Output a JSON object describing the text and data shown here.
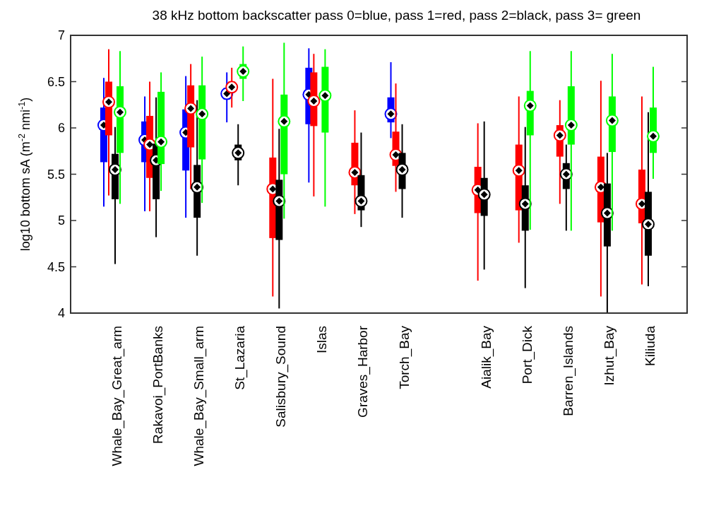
{
  "chart_data": {
    "type": "box",
    "title": "38 kHz bottom backscatter pass 0=blue, pass 1=red, pass 2=black, pass 3= green",
    "ylabel": "log10 bottom sA (m$^{-2}$ nmi$^{-1}$)",
    "categories": [
      "Whale_Bay_Great_arm",
      "Rakavoi_PortBanks",
      "Whale_Bay_Small_arm",
      "St_Lazaria",
      "Salisbury_Sound",
      "Islas",
      "Graves_Harbor",
      "Torch_Bay",
      null,
      "Aialik_Bay",
      "Port_Dick",
      "Barren_Islands",
      "Izhut_Bay",
      "Kiliuda"
    ],
    "ylim": [
      4,
      7
    ],
    "yticks": [
      4,
      4.5,
      5,
      5.5,
      6,
      6.5,
      7
    ],
    "grid": false,
    "series": [
      {
        "color": "#0000ff",
        "boxes": [
          {
            "low": 5.15,
            "q1": 5.63,
            "median": 6.03,
            "q3": 6.22,
            "high": 6.54
          },
          {
            "low": 5.1,
            "q1": 5.63,
            "median": 5.87,
            "q3": 6.07,
            "high": 6.34
          },
          {
            "low": 5.03,
            "q1": 5.54,
            "median": 5.95,
            "q3": 6.2,
            "high": 6.56
          },
          {
            "low": 6.06,
            "q1": 6.31,
            "median": 6.37,
            "q3": 6.43,
            "high": 6.6
          },
          null,
          {
            "low": 5.41,
            "q1": 6.04,
            "median": 6.36,
            "q3": 6.65,
            "high": 6.86
          },
          null,
          {
            "low": 5.89,
            "q1": 6.06,
            "median": 6.15,
            "q3": 6.33,
            "high": 6.71
          },
          null,
          null,
          null,
          null,
          null,
          null
        ]
      },
      {
        "color": "#ff0000",
        "boxes": [
          {
            "low": 5.27,
            "q1": 5.92,
            "median": 6.28,
            "q3": 6.5,
            "high": 6.85
          },
          {
            "low": 5.1,
            "q1": 5.46,
            "median": 5.82,
            "q3": 6.13,
            "high": 6.5
          },
          {
            "low": 5.34,
            "q1": 5.79,
            "median": 6.21,
            "q3": 6.46,
            "high": 6.69
          },
          {
            "low": 6.22,
            "q1": 6.39,
            "median": 6.44,
            "q3": 6.5,
            "high": 6.65
          },
          {
            "low": 4.18,
            "q1": 4.81,
            "median": 5.34,
            "q3": 5.68,
            "high": 6.53
          },
          {
            "low": 5.26,
            "q1": 6.02,
            "median": 6.29,
            "q3": 6.6,
            "high": 6.8
          },
          {
            "low": 5.07,
            "q1": 5.38,
            "median": 5.52,
            "q3": 5.84,
            "high": 6.19
          },
          {
            "low": 5.31,
            "q1": 5.59,
            "median": 5.71,
            "q3": 5.96,
            "high": 6.48
          },
          null,
          {
            "low": 4.35,
            "q1": 5.08,
            "median": 5.33,
            "q3": 5.58,
            "high": 6.05
          },
          {
            "low": 4.76,
            "q1": 5.11,
            "median": 5.54,
            "q3": 5.82,
            "high": 6.34
          },
          {
            "low": 5.18,
            "q1": 5.69,
            "median": 5.92,
            "q3": 6.03,
            "high": 6.3
          },
          {
            "low": 4.18,
            "q1": 4.98,
            "median": 5.36,
            "q3": 5.69,
            "high": 6.51
          },
          {
            "low": 4.31,
            "q1": 4.97,
            "median": 5.18,
            "q3": 5.55,
            "high": 6.34
          }
        ]
      },
      {
        "color": "#000000",
        "boxes": [
          {
            "low": 4.53,
            "q1": 5.23,
            "median": 5.55,
            "q3": 5.72,
            "high": 6.01
          },
          {
            "low": 4.82,
            "q1": 5.23,
            "median": 5.65,
            "q3": 5.83,
            "high": 6.33
          },
          {
            "low": 4.62,
            "q1": 5.03,
            "median": 5.36,
            "q3": 5.6,
            "high": 6.3
          },
          {
            "low": 5.38,
            "q1": 5.65,
            "median": 5.73,
            "q3": 5.82,
            "high": 6.04
          },
          {
            "low": 4.05,
            "q1": 4.79,
            "median": 5.21,
            "q3": 5.44,
            "high": 5.99
          },
          null,
          {
            "low": 4.93,
            "q1": 5.11,
            "median": 5.21,
            "q3": 5.49,
            "high": 5.95
          },
          {
            "low": 5.03,
            "q1": 5.34,
            "median": 5.55,
            "q3": 5.73,
            "high": 6.04
          },
          null,
          {
            "low": 4.47,
            "q1": 5.05,
            "median": 5.28,
            "q3": 5.46,
            "high": 6.07
          },
          {
            "low": 4.27,
            "q1": 4.89,
            "median": 5.18,
            "q3": 5.38,
            "high": 6.01
          },
          {
            "low": 4.89,
            "q1": 5.34,
            "median": 5.5,
            "q3": 5.62,
            "high": 5.82
          },
          {
            "low": 4,
            "q1": 4.72,
            "median": 5.08,
            "q3": 5.4,
            "high": 5.73
          },
          {
            "low": 4.29,
            "q1": 4.62,
            "median": 4.96,
            "q3": 5.31,
            "high": 6.17
          }
        ]
      },
      {
        "color": "#00ff00",
        "boxes": [
          {
            "low": 5.18,
            "q1": 5.73,
            "median": 6.17,
            "q3": 6.45,
            "high": 6.83
          },
          {
            "low": 5.32,
            "q1": 5.61,
            "median": 5.85,
            "q3": 6.39,
            "high": 6.6
          },
          {
            "low": 5.19,
            "q1": 5.66,
            "median": 6.15,
            "q3": 6.46,
            "high": 6.77
          },
          {
            "low": 6.29,
            "q1": 6.53,
            "median": 6.61,
            "q3": 6.69,
            "high": 6.88
          },
          {
            "low": 5.02,
            "q1": 5.5,
            "median": 6.07,
            "q3": 6.36,
            "high": 6.92
          },
          {
            "low": 5.15,
            "q1": 5.95,
            "median": 6.35,
            "q3": 6.66,
            "high": 6.85
          },
          null,
          null,
          null,
          null,
          {
            "low": 4.9,
            "q1": 5.92,
            "median": 6.24,
            "q3": 6.4,
            "high": 6.83
          },
          {
            "low": 4.89,
            "q1": 5.82,
            "median": 6.03,
            "q3": 6.45,
            "high": 6.83
          },
          {
            "low": 4.89,
            "q1": 5.74,
            "median": 6.08,
            "q3": 6.34,
            "high": 6.8
          },
          {
            "low": 5.45,
            "q1": 5.73,
            "median": 5.91,
            "q3": 6.22,
            "high": 6.66
          }
        ]
      }
    ]
  }
}
